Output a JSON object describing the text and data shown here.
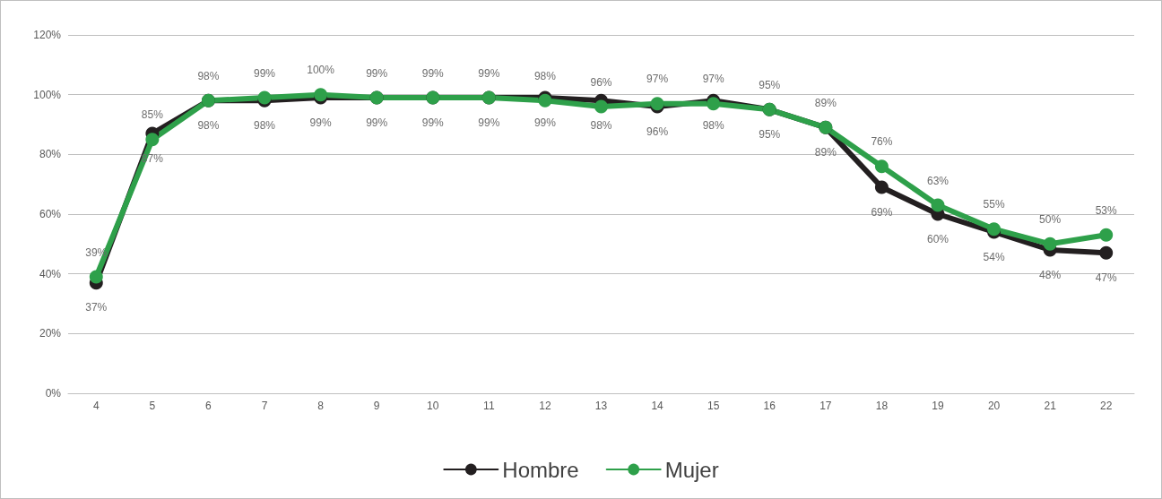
{
  "chart_data": {
    "type": "line",
    "categories": [
      "4",
      "5",
      "6",
      "7",
      "8",
      "9",
      "10",
      "11",
      "12",
      "13",
      "14",
      "15",
      "16",
      "17",
      "18",
      "19",
      "20",
      "21",
      "22"
    ],
    "series": [
      {
        "name": "Hombre",
        "color": "#231f20",
        "values": [
          37,
          87,
          98,
          98,
          99,
          99,
          99,
          99,
          99,
          98,
          96,
          98,
          95,
          89,
          69,
          60,
          54,
          48,
          47
        ],
        "value_labels": [
          "37%",
          "87%",
          "98%",
          "98%",
          "99%",
          "99%",
          "99%",
          "99%",
          "99%",
          "98%",
          "96%",
          "98%",
          "95%",
          "89%",
          "69%",
          "60%",
          "54%",
          "48%",
          "47%"
        ]
      },
      {
        "name": "Mujer",
        "color": "#2ea04a",
        "values": [
          39,
          85,
          98,
          99,
          100,
          99,
          99,
          99,
          98,
          96,
          97,
          97,
          95,
          89,
          76,
          63,
          55,
          50,
          53
        ],
        "value_labels": [
          "39%",
          "85%",
          "98%",
          "99%",
          "100%",
          "99%",
          "99%",
          "99%",
          "98%",
          "96%",
          "97%",
          "97%",
          "95%",
          "89%",
          "76%",
          "63%",
          "55%",
          "50%",
          "53%"
        ]
      }
    ],
    "ylim": [
      0,
      120
    ],
    "yticks": [
      {
        "value": 0,
        "label": "0%"
      },
      {
        "value": 20,
        "label": "20%"
      },
      {
        "value": 40,
        "label": "40%"
      },
      {
        "value": 60,
        "label": "60%"
      },
      {
        "value": 80,
        "label": "80%"
      },
      {
        "value": 100,
        "label": "100%"
      },
      {
        "value": 120,
        "label": "120%"
      }
    ],
    "grid": "y",
    "legend": "bottom",
    "marker": "circle",
    "line_style": "solid"
  }
}
